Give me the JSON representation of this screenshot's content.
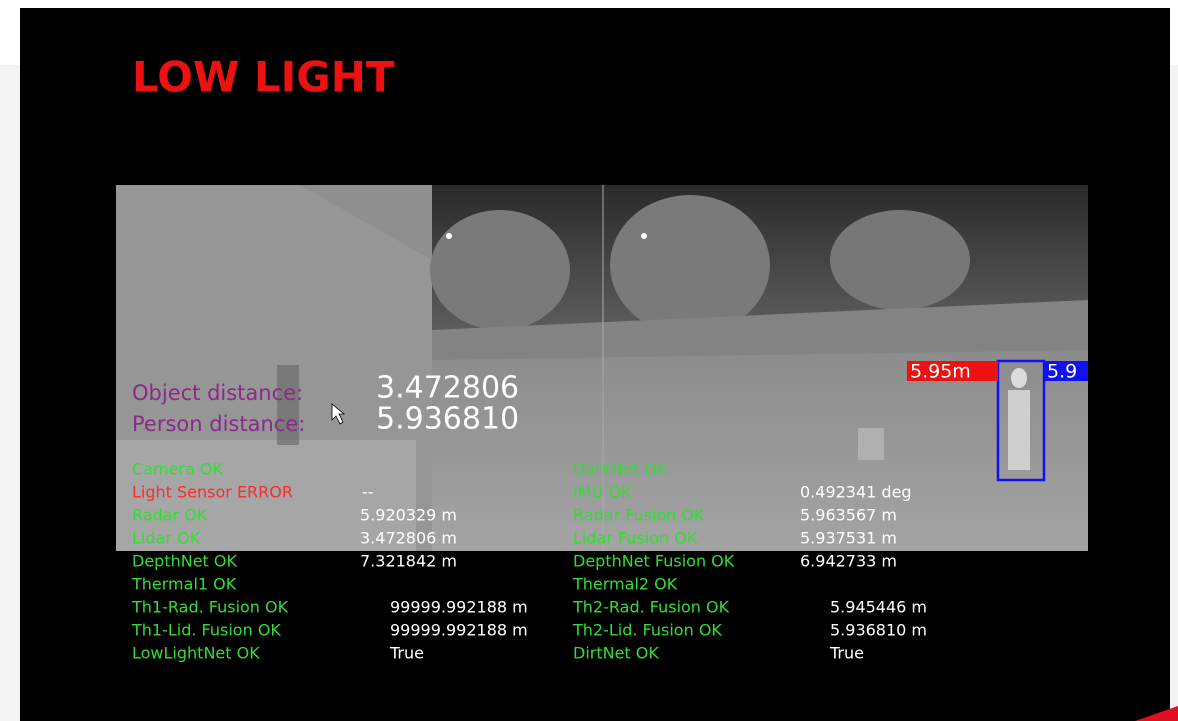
{
  "overlay": {
    "title": "LOW LIGHT",
    "object_distance": {
      "label": "Object distance:",
      "value": "3.472806"
    },
    "person_distance": {
      "label": "Person distance:",
      "value": "5.936810"
    },
    "detections": [
      {
        "label": "5.95m",
        "color": "#ee1111"
      },
      {
        "label": "5.9",
        "color": "#1111ee"
      }
    ],
    "status_left": [
      {
        "label": "Camera OK",
        "color": "#33dd33"
      },
      {
        "label": "Light Sensor ERROR",
        "value": "--",
        "color": "#ff2a2a"
      },
      {
        "label": "Radar OK",
        "value": "5.920329 m",
        "color": "#33dd33"
      },
      {
        "label": "Lidar OK",
        "value": "3.472806 m",
        "color": "#33dd33"
      },
      {
        "label": "DepthNet OK",
        "value": "7.321842 m",
        "color": "#33dd33"
      },
      {
        "label": "Thermal1 OK",
        "color": "#33dd33"
      },
      {
        "label": "Th1-Rad. Fusion OK",
        "value": "99999.992188 m",
        "color": "#33dd33"
      },
      {
        "label": "Th1-Lid. Fusion OK",
        "value": "99999.992188 m",
        "color": "#33dd33"
      },
      {
        "label": "LowLightNet OK",
        "value": "True",
        "color": "#33dd33"
      }
    ],
    "status_right": [
      {
        "label": "DarkNet OK",
        "color": "#33dd33"
      },
      {
        "label": "IMU OK",
        "value": "0.492341 deg",
        "color": "#33dd33"
      },
      {
        "label": "Radar Fusion OK",
        "value": "5.963567 m",
        "color": "#33dd33"
      },
      {
        "label": "Lidar Fusion OK",
        "value": "5.937531 m",
        "color": "#33dd33"
      },
      {
        "label": "DepthNet Fusion OK",
        "value": "6.942733 m",
        "color": "#33dd33"
      },
      {
        "label": "Thermal2 OK",
        "color": "#33dd33"
      },
      {
        "label": "Th2-Rad. Fusion OK",
        "value": "5.945446 m",
        "color": "#33dd33"
      },
      {
        "label": "Th2-Lid. Fusion OK",
        "value": "5.936810 m",
        "color": "#33dd33"
      },
      {
        "label": "DirtNet OK",
        "value": "True",
        "color": "#33dd33"
      }
    ]
  }
}
